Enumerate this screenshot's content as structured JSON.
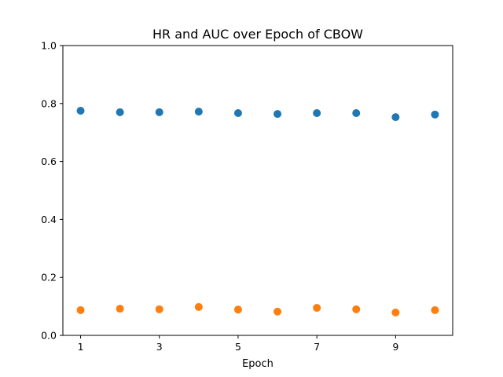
{
  "chart_data": {
    "type": "scatter",
    "title": "HR and AUC over Epoch of CBOW",
    "xlabel": "Epoch",
    "ylabel": "",
    "xlim": [
      0.55,
      10.45
    ],
    "ylim": [
      0.0,
      1.0
    ],
    "xticks": [
      1,
      3,
      5,
      7,
      9
    ],
    "yticks": [
      0.0,
      0.2,
      0.4,
      0.6,
      0.8,
      1.0
    ],
    "grid": false,
    "series": [
      {
        "color": "#1f77b4",
        "x": [
          1,
          2,
          3,
          4,
          5,
          6,
          7,
          8,
          9,
          10
        ],
        "y": [
          0.775,
          0.77,
          0.77,
          0.772,
          0.767,
          0.764,
          0.767,
          0.767,
          0.753,
          0.762
        ]
      },
      {
        "color": "#ff7f0e",
        "x": [
          1,
          2,
          3,
          4,
          5,
          6,
          7,
          8,
          9,
          10
        ],
        "y": [
          0.087,
          0.092,
          0.09,
          0.098,
          0.089,
          0.082,
          0.095,
          0.09,
          0.079,
          0.087
        ]
      }
    ]
  }
}
